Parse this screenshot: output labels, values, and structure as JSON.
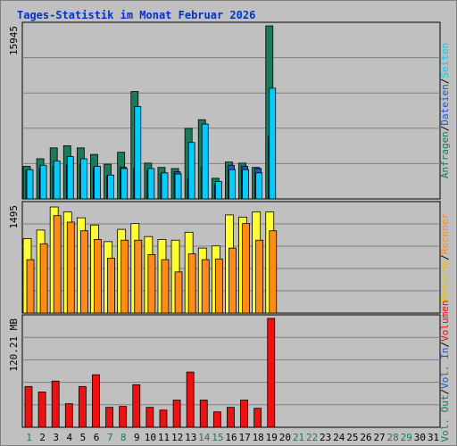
{
  "title": "Tages-Statistik im Monat Februar 2026",
  "colors": {
    "background": "#c0c0c0",
    "plot": "#c0c0c0",
    "grid": "#808080",
    "anfragen": "#1a7a5a",
    "dateien": "#00ccff",
    "seiten": "#2255cc",
    "besuche": "#ffff33",
    "rechner": "#ff8c1a",
    "volumen": "#ee1111",
    "weekday_label": "#1a7a5a",
    "workday_label": "#000000"
  },
  "panels": {
    "hits": {
      "max_label": "15945",
      "right_label": [
        {
          "text": "Anfragen",
          "color": "#1a7a5a"
        },
        {
          "text": "Dateien",
          "color": "#2255cc"
        },
        {
          "text": "Seiten",
          "color": "#00ccff"
        }
      ]
    },
    "visits": {
      "max_label": "1495",
      "right_label": [
        {
          "text": "Besuche",
          "color": "#e6c200"
        },
        {
          "text": "Rechner",
          "color": "#ff8c1a"
        }
      ]
    },
    "volume": {
      "max_label": "120.21 MB",
      "right_label": [
        {
          "text": "Vol. Out",
          "color": "#1a7a5a"
        },
        {
          "text": "Vol. In",
          "color": "#2255cc"
        },
        {
          "text": "Volumen",
          "color": "#ee1111"
        }
      ]
    }
  },
  "chart_data": [
    {
      "type": "bar",
      "panel": "hits",
      "categories": [
        "1",
        "2",
        "3",
        "4",
        "5",
        "6",
        "7",
        "8",
        "9",
        "10",
        "11",
        "12",
        "13",
        "14",
        "15",
        "16",
        "17",
        "18",
        "19",
        "20",
        "21",
        "22",
        "23",
        "24",
        "25",
        "26",
        "27",
        "28",
        "29",
        "30",
        "31"
      ],
      "ylim": [
        0,
        15945
      ],
      "series": [
        {
          "name": "Anfragen",
          "values": [
            3000,
            3700,
            4700,
            4900,
            4700,
            4100,
            3200,
            4300,
            9900,
            3300,
            2900,
            2800,
            6500,
            7300,
            1900,
            3400,
            3300,
            2900,
            15945,
            0,
            0,
            0,
            0,
            0,
            0,
            0,
            0,
            0,
            0,
            0,
            0
          ]
        },
        {
          "name": "Dateien",
          "values": [
            2700,
            3100,
            3500,
            3900,
            3700,
            3000,
            2200,
            2800,
            8500,
            2800,
            2400,
            2300,
            5200,
            6900,
            1600,
            2700,
            2700,
            2400,
            10200,
            0,
            0,
            0,
            0,
            0,
            0,
            0,
            0,
            0,
            0,
            0,
            0
          ]
        },
        {
          "name": "Seiten",
          "values": [
            2600,
            2800,
            3000,
            3100,
            3200,
            2900,
            2100,
            2900,
            2800,
            2600,
            2300,
            2500,
            1900,
            2900,
            1300,
            3100,
            3000,
            2800,
            5800,
            0,
            0,
            0,
            0,
            0,
            0,
            0,
            0,
            0,
            0,
            0,
            0
          ]
        }
      ]
    },
    {
      "type": "bar",
      "panel": "visits",
      "categories": [
        "1",
        "2",
        "3",
        "4",
        "5",
        "6",
        "7",
        "8",
        "9",
        "10",
        "11",
        "12",
        "13",
        "14",
        "15",
        "16",
        "17",
        "18",
        "19",
        "20",
        "21",
        "22",
        "23",
        "24",
        "25",
        "26",
        "27",
        "28",
        "29",
        "30",
        "31"
      ],
      "ylim": [
        0,
        1495
      ],
      "series": [
        {
          "name": "Besuche",
          "values": [
            1030,
            1150,
            1470,
            1400,
            1320,
            1220,
            990,
            1160,
            1240,
            1060,
            1020,
            1010,
            1120,
            900,
            930,
            1360,
            1330,
            1400,
            1400,
            0,
            0,
            0,
            0,
            0,
            0,
            0,
            0,
            0,
            0,
            0,
            0
          ]
        },
        {
          "name": "Rechner",
          "values": [
            740,
            960,
            1350,
            1260,
            1140,
            1020,
            760,
            1010,
            1010,
            810,
            740,
            570,
            820,
            740,
            750,
            900,
            1240,
            1010,
            1140,
            0,
            0,
            0,
            0,
            0,
            0,
            0,
            0,
            0,
            0,
            0,
            0
          ]
        }
      ]
    },
    {
      "type": "bar",
      "panel": "volume",
      "categories": [
        "1",
        "2",
        "3",
        "4",
        "5",
        "6",
        "7",
        "8",
        "9",
        "10",
        "11",
        "12",
        "13",
        "14",
        "15",
        "16",
        "17",
        "18",
        "19",
        "20",
        "21",
        "22",
        "23",
        "24",
        "25",
        "26",
        "27",
        "28",
        "29",
        "30",
        "31"
      ],
      "ylim": [
        0,
        120.21
      ],
      "series": [
        {
          "name": "Volumen",
          "values": [
            45,
            39,
            51,
            26,
            45,
            58,
            22,
            23,
            47,
            22,
            19,
            30,
            61,
            30,
            17,
            22,
            30,
            21,
            120.21,
            0,
            0,
            0,
            0,
            0,
            0,
            0,
            0,
            0,
            0,
            0,
            0
          ]
        }
      ]
    }
  ],
  "weekends": [
    "1",
    "7",
    "8",
    "14",
    "15",
    "21",
    "22",
    "28",
    "29"
  ]
}
